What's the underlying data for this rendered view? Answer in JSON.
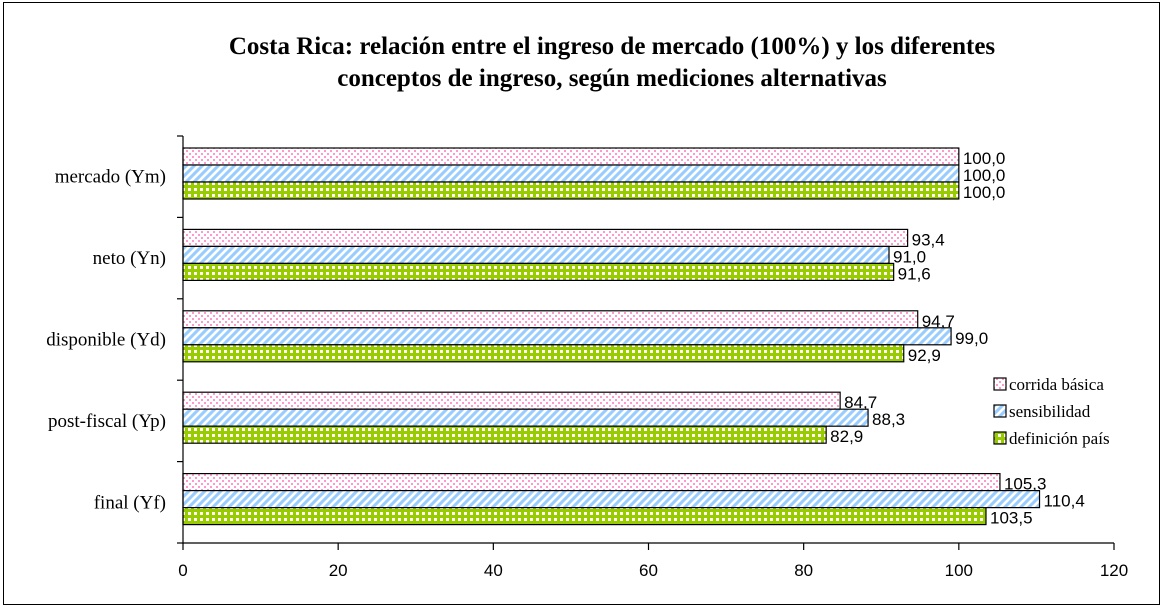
{
  "chart_data": {
    "type": "bar",
    "orientation": "horizontal",
    "title_lines": [
      "Costa Rica: relación entre el ingreso de mercado (100%) y los diferentes",
      "conceptos de ingreso, según mediciones alternativas"
    ],
    "categories": [
      "mercado (Ym)",
      "neto (Yn)",
      "disponible (Yd)",
      "post-fiscal (Yp)",
      "final (Yf)"
    ],
    "series": [
      {
        "name": "corrida básica",
        "values": [
          100.0,
          93.4,
          94.7,
          84.7,
          105.3
        ],
        "labels": [
          "100,0",
          "93,4",
          "94,7",
          "84,7",
          "105,3"
        ],
        "pattern": "dots",
        "color": "#ff99cc"
      },
      {
        "name": "sensibilidad",
        "values": [
          100.0,
          91.0,
          99.0,
          88.3,
          110.4
        ],
        "labels": [
          "100,0",
          "91,0",
          "99,0",
          "88,3",
          "110,4"
        ],
        "pattern": "diagonal",
        "color": "#99ccff"
      },
      {
        "name": "definición país",
        "values": [
          100.0,
          91.6,
          92.9,
          82.9,
          103.5
        ],
        "labels": [
          "100,0",
          "91,6",
          "92,9",
          "82,9",
          "103,5"
        ],
        "pattern": "grid",
        "color": "#99cc00"
      }
    ],
    "xlim": [
      0,
      120
    ],
    "xticks": [
      "0",
      "20",
      "40",
      "60",
      "80",
      "100",
      "120"
    ],
    "legend_position": "right",
    "grid": false
  }
}
